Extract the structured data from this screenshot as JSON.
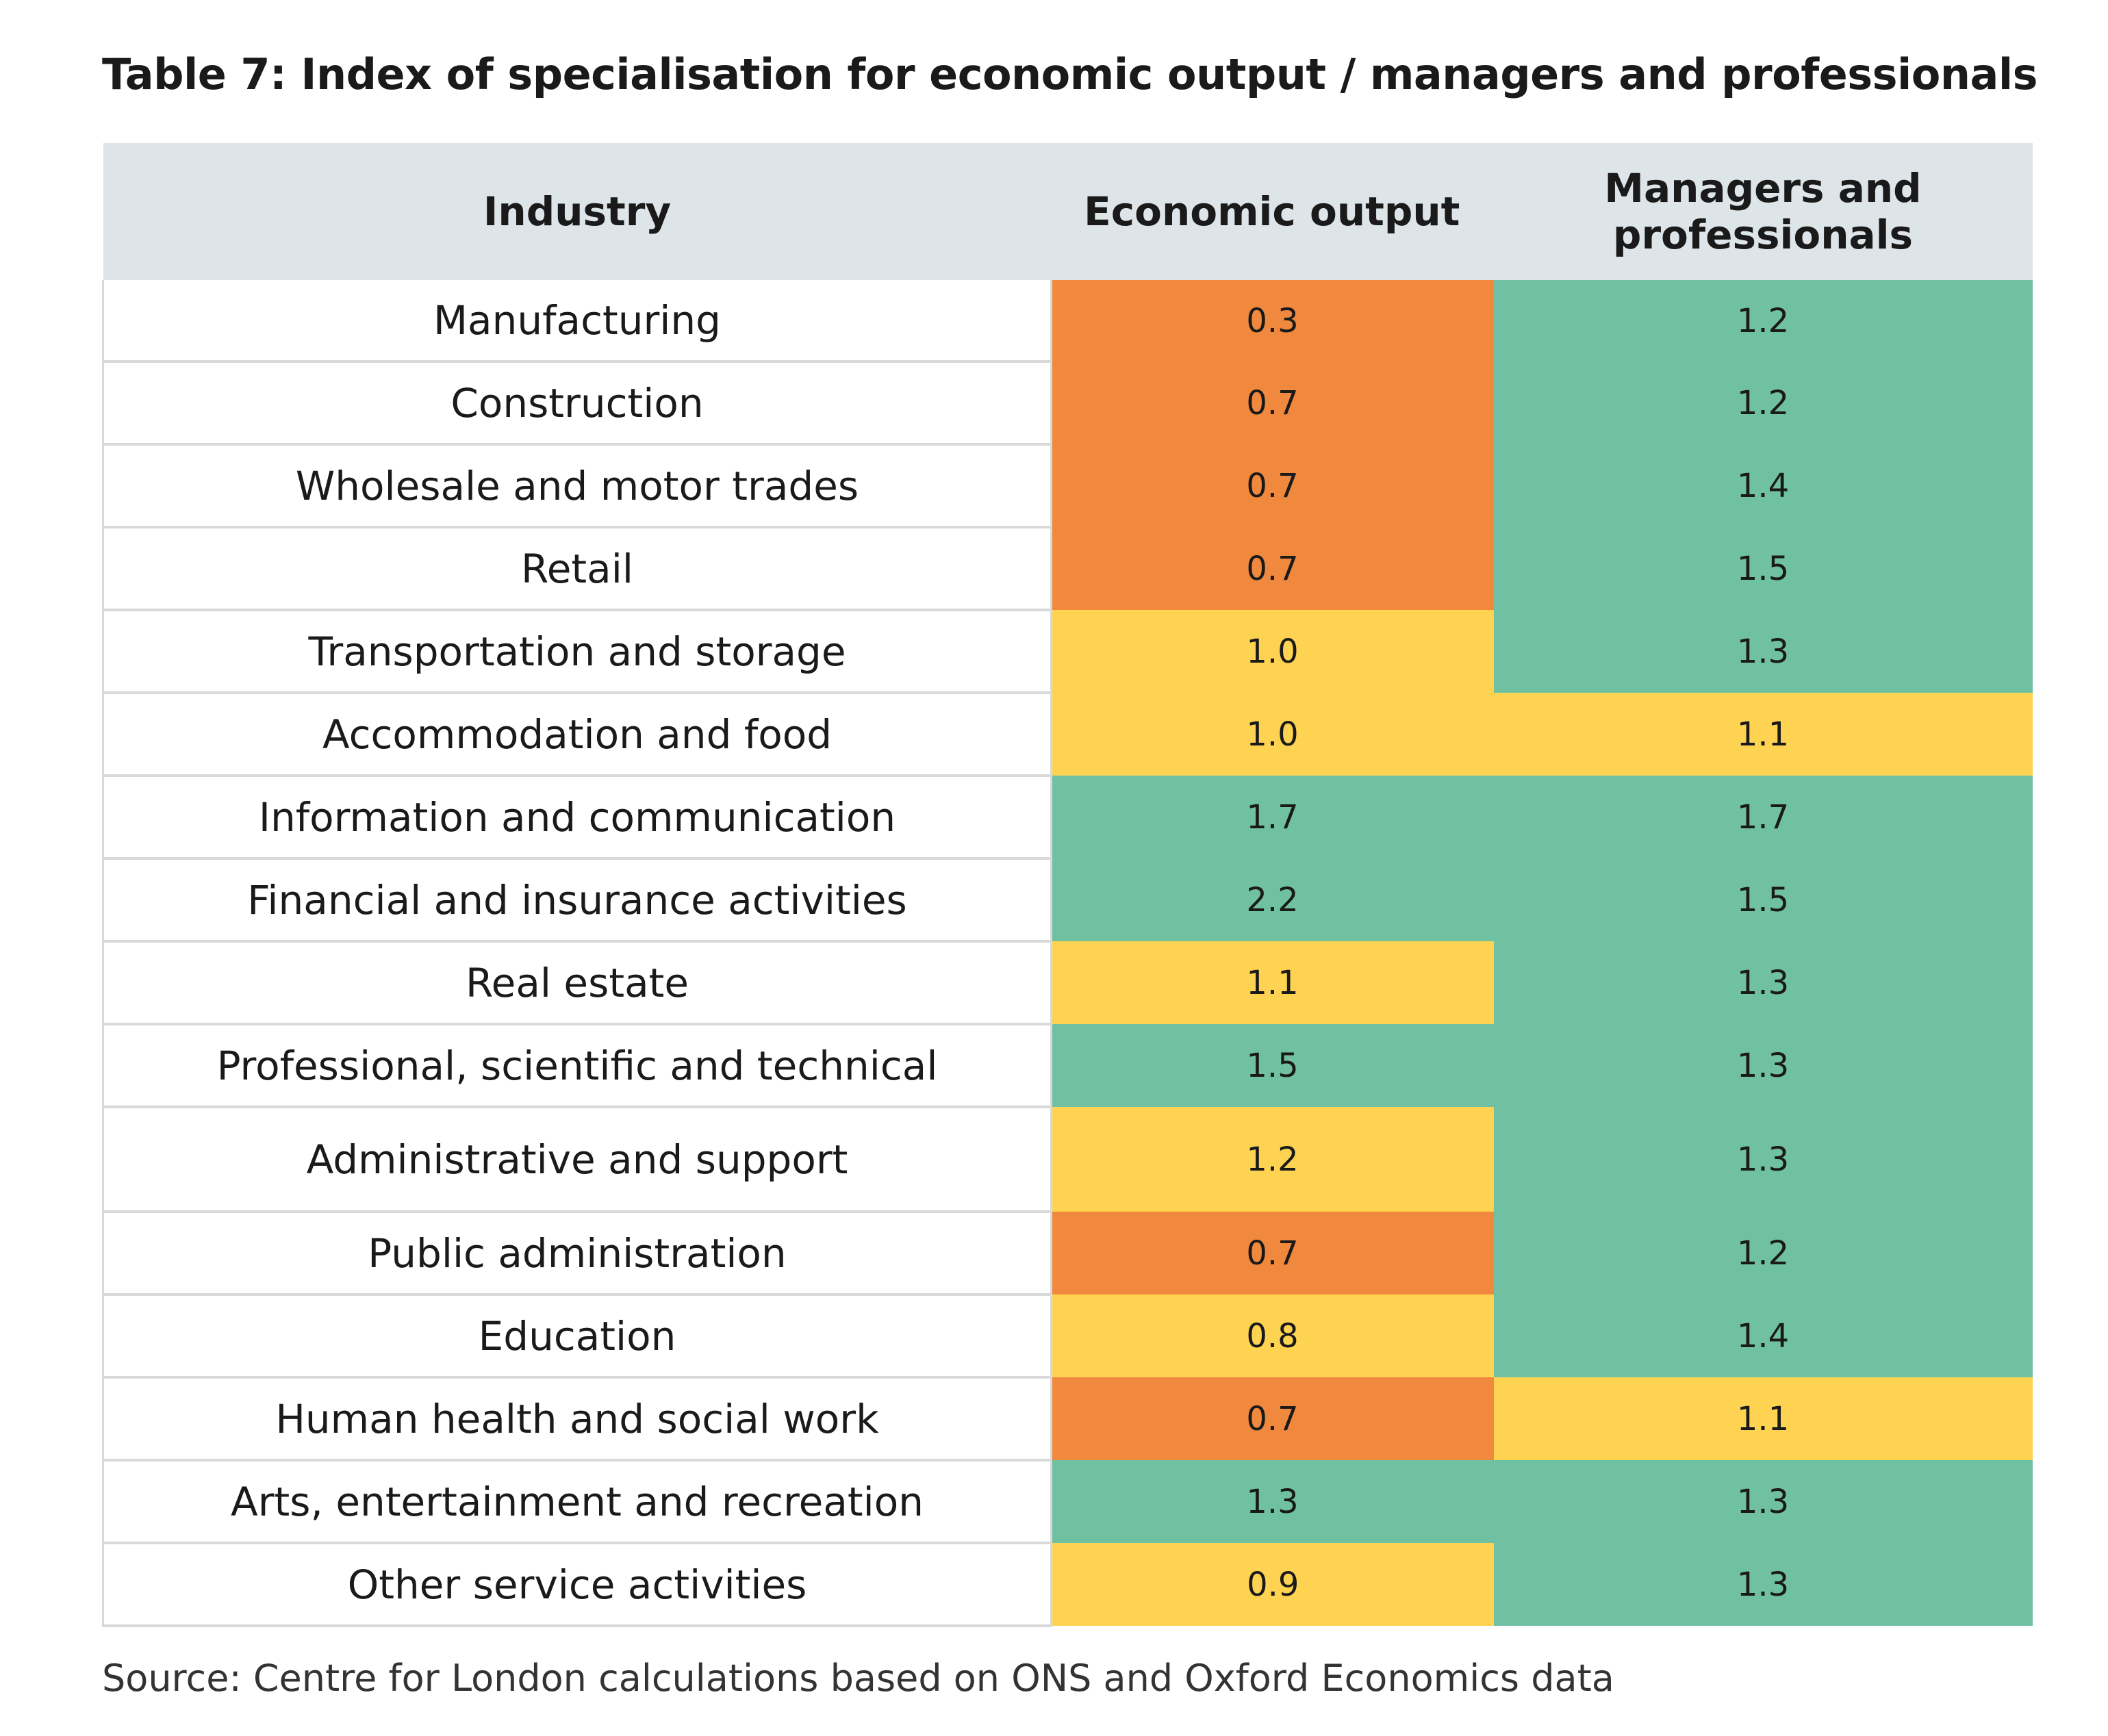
{
  "title": "Table 7: Index of specialisation for economic output / managers and professionals",
  "colors": {
    "low": "#F0883E",
    "mid": "#FFD352",
    "high": "#6FC1A1",
    "header_bg": "#DEE5E8"
  },
  "table": {
    "headers": [
      "Industry",
      "Economic output",
      "Managers and professionals"
    ],
    "rows": [
      {
        "industry": "Manufacturing",
        "economic_output": "0.3",
        "eo_level": "low",
        "managers_professionals": "1.2",
        "mp_level": "high"
      },
      {
        "industry": "Construction",
        "economic_output": "0.7",
        "eo_level": "low",
        "managers_professionals": "1.2",
        "mp_level": "high"
      },
      {
        "industry": "Wholesale and motor trades",
        "economic_output": "0.7",
        "eo_level": "low",
        "managers_professionals": "1.4",
        "mp_level": "high"
      },
      {
        "industry": "Retail",
        "economic_output": "0.7",
        "eo_level": "low",
        "managers_professionals": "1.5",
        "mp_level": "high"
      },
      {
        "industry": "Transportation and storage",
        "economic_output": "1.0",
        "eo_level": "mid",
        "managers_professionals": "1.3",
        "mp_level": "high"
      },
      {
        "industry": "Accommodation and food",
        "economic_output": "1.0",
        "eo_level": "mid",
        "managers_professionals": "1.1",
        "mp_level": "mid"
      },
      {
        "industry": "Information and communication",
        "economic_output": "1.7",
        "eo_level": "high",
        "managers_professionals": "1.7",
        "mp_level": "high"
      },
      {
        "industry": "Financial and insurance activities",
        "economic_output": "2.2",
        "eo_level": "high",
        "managers_professionals": "1.5",
        "mp_level": "high"
      },
      {
        "industry": "Real estate",
        "economic_output": "1.1",
        "eo_level": "mid",
        "managers_professionals": "1.3",
        "mp_level": "high"
      },
      {
        "industry": "Professional, scientific and technical",
        "economic_output": "1.5",
        "eo_level": "high",
        "managers_professionals": "1.3",
        "mp_level": "high"
      },
      {
        "industry": "Administrative and support",
        "economic_output": "1.2",
        "eo_level": "mid",
        "managers_professionals": "1.3",
        "mp_level": "high"
      },
      {
        "industry": "Public administration",
        "economic_output": "0.7",
        "eo_level": "low",
        "managers_professionals": "1.2",
        "mp_level": "high"
      },
      {
        "industry": "Education",
        "economic_output": "0.8",
        "eo_level": "mid",
        "managers_professionals": "1.4",
        "mp_level": "high"
      },
      {
        "industry": "Human health and social work",
        "economic_output": "0.7",
        "eo_level": "low",
        "managers_professionals": "1.1",
        "mp_level": "mid"
      },
      {
        "industry": "Arts, entertainment and recreation",
        "economic_output": "1.3",
        "eo_level": "high",
        "managers_professionals": "1.3",
        "mp_level": "high"
      },
      {
        "industry": "Other service activities",
        "economic_output": "0.9",
        "eo_level": "mid",
        "managers_professionals": "1.3",
        "mp_level": "high"
      }
    ]
  },
  "source": "Source: Centre for London calculations based on ONS and Oxford Economics data"
}
